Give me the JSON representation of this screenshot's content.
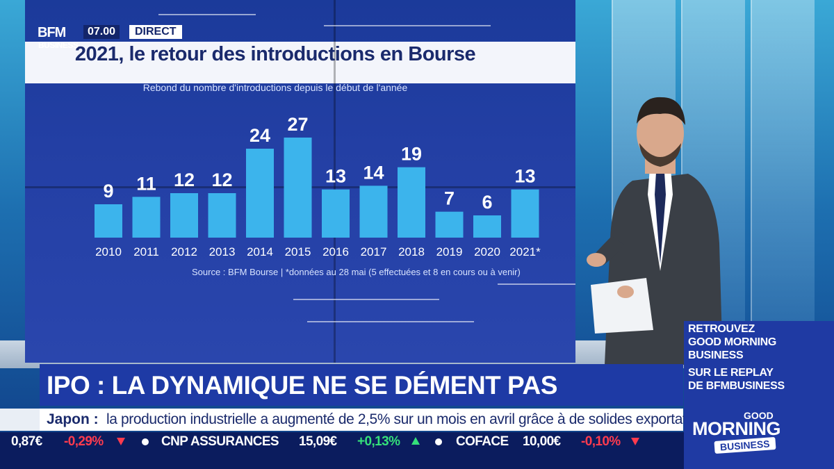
{
  "bug": {
    "logo_top": "BFM",
    "logo_bottom": "BUSINESS",
    "time": "07.00",
    "live": "DIRECT"
  },
  "chart_data": {
    "type": "bar",
    "title": "2021, le retour des introductions en Bourse",
    "subtitle": "Rebond du nombre d'introductions depuis le début de l'année",
    "categories": [
      "2010",
      "2011",
      "2012",
      "2013",
      "2014",
      "2015",
      "2016",
      "2017",
      "2018",
      "2019",
      "2020",
      "2021*"
    ],
    "values": [
      9,
      11,
      12,
      12,
      24,
      27,
      13,
      14,
      19,
      7,
      6,
      13
    ],
    "data_labels": [
      "9",
      "11",
      "12",
      "12",
      "24",
      "27",
      "13",
      "14",
      "19",
      "7",
      "6",
      "13"
    ],
    "source": "Source : BFM Bourse | *données au 28 mai (5 effectuées et 8 en cours ou à venir)",
    "xlabel": "",
    "ylabel": "",
    "ylim": [
      0,
      30
    ],
    "grid": false,
    "bar_color": "#3cb4ec",
    "label_color": "#ffffff"
  },
  "promo": {
    "lines_top": [
      "RETROUVEZ",
      "GOOD MORNING",
      "BUSINESS"
    ],
    "lines_bottom": [
      "SUR LE REPLAY",
      "DE BFMBUSINESS"
    ]
  },
  "headline": "IPO : LA DYNAMIQUE NE SE DÉMENT PAS",
  "news": {
    "topic": "Japon :",
    "text": "la production industrielle a augmenté de 2,5% sur un mois en avril grâce à de solides exportations."
  },
  "ticker": {
    "items": [
      {
        "text": "0,87€",
        "color": "white"
      },
      {
        "text": "-0,29%",
        "color": "red"
      },
      {
        "text": "CNP ASSURANCES",
        "color": "white"
      },
      {
        "text": "15,09€",
        "color": "white"
      },
      {
        "text": "+0,13%",
        "color": "green"
      },
      {
        "text": "COFACE",
        "color": "white"
      },
      {
        "text": "10,00€",
        "color": "white"
      },
      {
        "text": "-0,10%",
        "color": "red"
      }
    ]
  },
  "show_logo": {
    "good": "GOOD",
    "morning": "MORNING",
    "business": "BUSINESS"
  },
  "colors": {
    "brand_blue": "#1e3aa5",
    "ticker_bg": "#0b1c5e",
    "up": "#35e07a",
    "down": "#ff3b4e"
  }
}
